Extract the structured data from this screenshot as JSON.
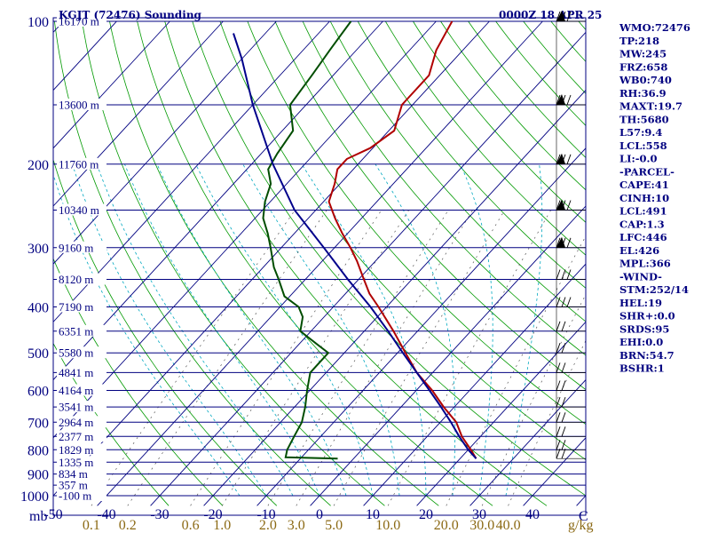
{
  "header": {
    "station": "KGJT (72476) Sounding",
    "time": "0000Z 18 APR 25"
  },
  "axes": {
    "pressure_unit": "mb",
    "mixing_unit": "g/kg",
    "mixing_ratio_labels": [
      "0.1",
      "0.2",
      "0.6",
      "1.0",
      "2.0",
      "3.0",
      "5.0",
      "10.0",
      "20.0",
      "30.0",
      "40.0"
    ],
    "mixing_ratio_values": [
      0.1,
      0.2,
      0.6,
      1.0,
      2.0,
      3.0,
      5.0,
      10.0,
      20.0,
      30.0,
      40.0
    ],
    "temp_tick_values": [
      -50,
      -40,
      -30,
      -20,
      -10,
      0,
      10,
      20,
      30,
      40
    ],
    "temp_tick_labels": [
      "-50",
      "-40",
      "-30",
      "-20",
      "-10",
      "0",
      "10",
      "20",
      "30",
      "40"
    ],
    "corner_label": "C"
  },
  "chart_data": {
    "type": "line",
    "title": "KGJT (72476) Sounding",
    "x_unit": "C",
    "y_unit": "mb",
    "y_scale": "log",
    "ylim": [
      1050,
      100
    ],
    "xlim": [
      -50,
      50
    ],
    "skew_deg_per_decade": 81.9,
    "pressure_levels": [
      100,
      200,
      300,
      400,
      500,
      600,
      700,
      800,
      900,
      1000
    ],
    "isobars": [
      100,
      150,
      200,
      250,
      300,
      350,
      400,
      450,
      500,
      550,
      600,
      650,
      700,
      750,
      800,
      850,
      900,
      950,
      1000
    ],
    "height_labels": [
      {
        "p": 100,
        "label": "16170 m"
      },
      {
        "p": 150,
        "label": "13600 m"
      },
      {
        "p": 200,
        "label": "11760 m"
      },
      {
        "p": 250,
        "label": "10340 m"
      },
      {
        "p": 300,
        "label": "9160 m"
      },
      {
        "p": 350,
        "label": "8120 m"
      },
      {
        "p": 400,
        "label": "7190 m"
      },
      {
        "p": 450,
        "label": "6351 m"
      },
      {
        "p": 500,
        "label": "5580 m"
      },
      {
        "p": 550,
        "label": "4841 m"
      },
      {
        "p": 600,
        "label": "4164 m"
      },
      {
        "p": 650,
        "label": "3541 m"
      },
      {
        "p": 700,
        "label": "2964 m"
      },
      {
        "p": 750,
        "label": "2377 m"
      },
      {
        "p": 800,
        "label": "1829 m"
      },
      {
        "p": 850,
        "label": "1335 m"
      },
      {
        "p": 900,
        "label": "834 m"
      },
      {
        "p": 950,
        "label": "357 m"
      },
      {
        "p": 1000,
        "label": "-100 m"
      }
    ],
    "series": [
      {
        "color": "#b00000",
        "points": [
          [
            835,
            23.0
          ],
          [
            800,
            20.5
          ],
          [
            750,
            16.5
          ],
          [
            700,
            13.0
          ],
          [
            650,
            8.0
          ],
          [
            600,
            3.0
          ],
          [
            550,
            -3.0
          ],
          [
            500,
            -8.5
          ],
          [
            450,
            -14.5
          ],
          [
            400,
            -21.5
          ],
          [
            375,
            -25.5
          ],
          [
            350,
            -29.0
          ],
          [
            320,
            -33.5
          ],
          [
            300,
            -37.0
          ],
          [
            280,
            -41.0
          ],
          [
            260,
            -45.0
          ],
          [
            240,
            -49.0
          ],
          [
            220,
            -51.0
          ],
          [
            205,
            -53.0
          ],
          [
            195,
            -53.0
          ],
          [
            185,
            -50.5
          ],
          [
            170,
            -49.0
          ],
          [
            150,
            -52.0
          ],
          [
            130,
            -52.0
          ],
          [
            115,
            -55.0
          ],
          [
            100,
            -57.0
          ]
        ]
      },
      {
        "color": "#004d00",
        "points": [
          [
            835,
            -3.0
          ],
          [
            830,
            -13.0
          ],
          [
            800,
            -14.0
          ],
          [
            750,
            -15.0
          ],
          [
            700,
            -16.0
          ],
          [
            650,
            -18.0
          ],
          [
            600,
            -20.5
          ],
          [
            550,
            -23.0
          ],
          [
            500,
            -23.0
          ],
          [
            480,
            -26.5
          ],
          [
            450,
            -32.0
          ],
          [
            420,
            -34.0
          ],
          [
            400,
            -36.5
          ],
          [
            380,
            -41.0
          ],
          [
            350,
            -45.0
          ],
          [
            330,
            -48.0
          ],
          [
            300,
            -52.0
          ],
          [
            280,
            -55.0
          ],
          [
            260,
            -58.5
          ],
          [
            240,
            -61.0
          ],
          [
            220,
            -63.0
          ],
          [
            205,
            -66.0
          ],
          [
            190,
            -67.0
          ],
          [
            170,
            -68.0
          ],
          [
            150,
            -73.0
          ],
          [
            130,
            -74.0
          ],
          [
            115,
            -75.0
          ],
          [
            100,
            -76.0
          ]
        ]
      },
      {
        "color": "#00008b",
        "points": [
          [
            835,
            23.0
          ],
          [
            800,
            20.0
          ],
          [
            750,
            16.0
          ],
          [
            700,
            12.0
          ],
          [
            650,
            7.5
          ],
          [
            600,
            2.5
          ],
          [
            550,
            -3.0
          ],
          [
            500,
            -9.0
          ],
          [
            450,
            -15.5
          ],
          [
            400,
            -23.0
          ],
          [
            350,
            -32.0
          ],
          [
            300,
            -42.0
          ],
          [
            250,
            -54.0
          ],
          [
            200,
            -66.0
          ],
          [
            150,
            -80.0
          ],
          [
            120,
            -90.0
          ],
          [
            106,
            -96.0
          ]
        ]
      }
    ]
  },
  "stats": [
    "WMO:72476",
    "TP:218",
    "MW:245",
    "FRZ:658",
    "WB0:740",
    "RH:36.9",
    "MAXT:19.7",
    "TH:5680",
    "L57:9.4",
    "LCL:558",
    "LI:-0.0",
    "-PARCEL-",
    "CAPE:41",
    "CINH:10",
    "LCL:491",
    "CAP:1.3",
    "LFC:446",
    "EL:426",
    "MPL:366",
    "-WIND-",
    "STM:252/14",
    "HEL:19",
    "SHR+:0.0",
    "SRDS:95",
    "EHI:0.0",
    "BRN:54.7",
    "BSHR:1"
  ],
  "wind_levels": [
    835,
    800,
    750,
    700,
    650,
    600,
    550,
    500,
    450,
    400,
    350,
    300,
    250,
    200,
    150,
    100
  ],
  "colors": {
    "axis_text": "#000080",
    "isobar": "#000080",
    "isotherm": "#000080",
    "dry_adiabat": "#009900",
    "moist_adiabat": "#00a8c0",
    "mixing_ratio": "#555555",
    "mixing_label": "#8b6914",
    "temperature": "#b00000",
    "dewpoint": "#004d00",
    "parcel": "#00008b"
  }
}
